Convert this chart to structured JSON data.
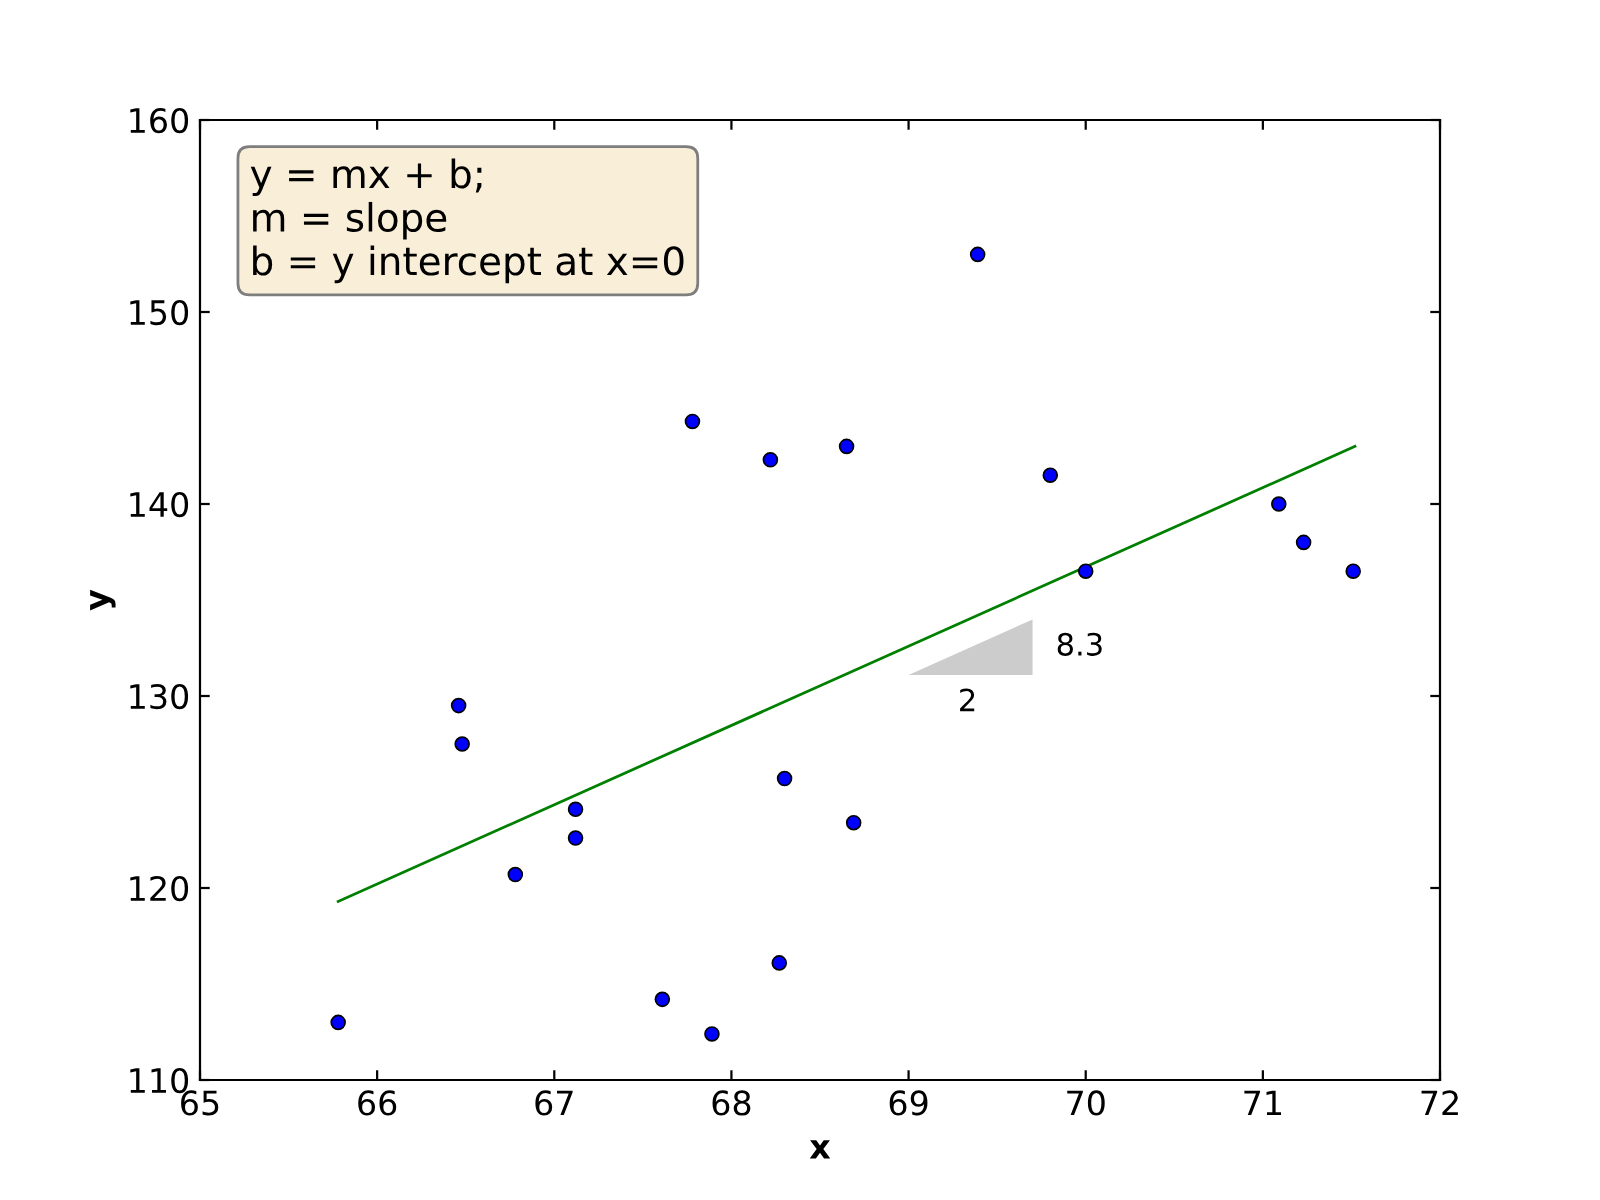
{
  "chart_data": {
    "type": "scatter",
    "xlabel": "x",
    "ylabel": "y",
    "xlim": [
      65,
      72
    ],
    "ylim": [
      110,
      160
    ],
    "xticks": [
      65,
      66,
      67,
      68,
      69,
      70,
      71,
      72
    ],
    "yticks": [
      110,
      120,
      130,
      140,
      150,
      160
    ],
    "grid": false,
    "legend": false,
    "series": [
      {
        "marker": "circle",
        "color": "#0000ff",
        "x": [
          65.78,
          66.46,
          66.48,
          66.78,
          67.12,
          67.12,
          67.61,
          67.78,
          67.89,
          68.22,
          68.27,
          68.3,
          68.65,
          68.69,
          69.39,
          69.8,
          70.0,
          71.09,
          71.23,
          71.51
        ],
        "values": [
          113.0,
          129.5,
          127.5,
          120.7,
          124.1,
          122.6,
          114.2,
          144.3,
          112.4,
          142.3,
          116.1,
          125.7,
          143.0,
          123.4,
          153.0,
          141.5,
          136.5,
          140.0,
          138.0,
          136.5
        ]
      },
      {
        "type": "line",
        "color": "#008000",
        "x": [
          65.78,
          71.52
        ],
        "values": [
          119.3,
          143.0
        ]
      }
    ],
    "annotations": [
      "y = mx + b;\nm = slope\nb = y intercept at x=0",
      "2",
      "8.3"
    ]
  }
}
